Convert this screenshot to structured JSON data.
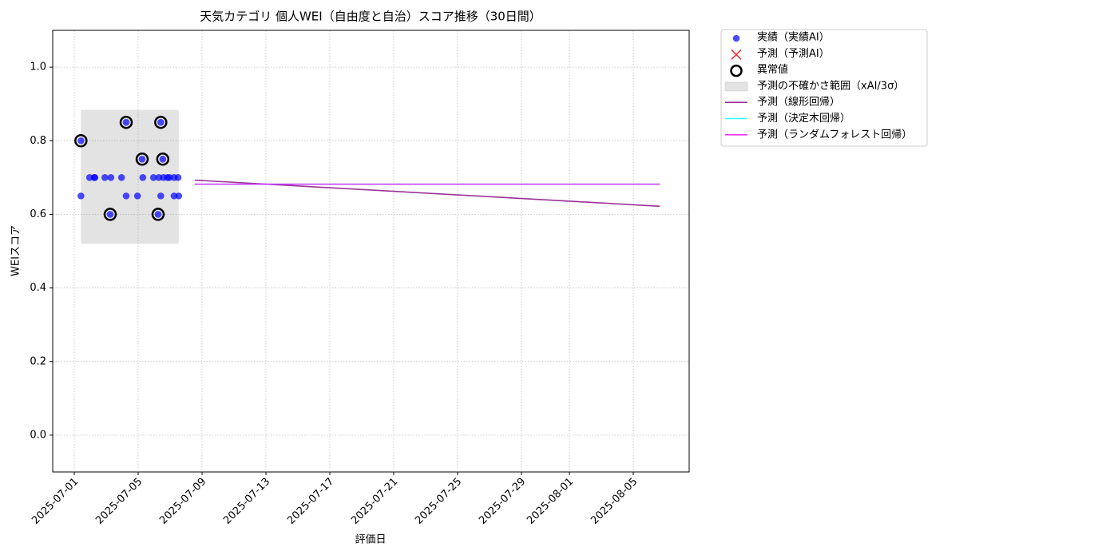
{
  "chart_data": {
    "type": "scatter",
    "title": "天気カテゴリ 個人WEI（自由度と自治）スコア推移（30日間）",
    "xlabel": "評価日",
    "ylabel": "WEIスコア",
    "xlim": [
      "2025-06-29T15:36",
      "2025-08-08T12:00"
    ],
    "xticks": [
      "2025-07-01",
      "2025-07-05",
      "2025-07-09",
      "2025-07-13",
      "2025-07-17",
      "2025-07-21",
      "2025-07-25",
      "2025-07-29",
      "2025-08-01",
      "2025-08-05"
    ],
    "ylim": [
      -0.1,
      1.1
    ],
    "yticks": [
      {
        "value": 0,
        "label": "0.0"
      },
      0.2,
      0.4,
      0.6,
      0.8,
      {
        "value": 1,
        "label": "1.0"
      }
    ],
    "grid": true,
    "legend": "outside upper right",
    "series": [
      {
        "name": "実績（実績AI）",
        "type": "scatter",
        "color": "#0000ff",
        "x": [
          "2025-07-01T10:00",
          "2025-07-01T10:00",
          "2025-07-01T23:00",
          "2025-07-02T06:00",
          "2025-07-02T07:00",
          "2025-07-02T22:00",
          "2025-07-03T07:00",
          "2025-07-03T06:00",
          "2025-07-03T23:00",
          "2025-07-04T06:00",
          "2025-07-04T06:00",
          "2025-07-04T23:00",
          "2025-07-05T06:00",
          "2025-07-05T07:00",
          "2025-07-05T23:00",
          "2025-07-06T07:00",
          "2025-07-06T06:00",
          "2025-07-06T10:00",
          "2025-07-06T10:00",
          "2025-07-06T13:00",
          "2025-07-06T14:00",
          "2025-07-06T20:00",
          "2025-07-06T23:00",
          "2025-07-07T06:00",
          "2025-07-07T06:00",
          "2025-07-07T12:00",
          "2025-07-07T13:00"
        ],
        "values": [
          0.8,
          0.65,
          0.7,
          0.7,
          0.7,
          0.7,
          0.7,
          0.6,
          0.7,
          0.85,
          0.65,
          0.65,
          0.75,
          0.7,
          0.7,
          0.7,
          0.6,
          0.85,
          0.65,
          0.75,
          0.7,
          0.7,
          0.7,
          0.7,
          0.65,
          0.7,
          0.65
        ]
      },
      {
        "name": "予測（予測AI）",
        "type": "cross",
        "color": "#ff0000",
        "x": [],
        "values": []
      },
      {
        "name": "異常値",
        "type": "ring",
        "color": "#000000",
        "x": [
          "2025-07-01T10:00",
          "2025-07-03T06:00",
          "2025-07-04T06:00",
          "2025-07-05T06:00",
          "2025-07-06T06:00",
          "2025-07-06T10:00",
          "2025-07-06T13:00"
        ],
        "values": [
          0.8,
          0.6,
          0.85,
          0.75,
          0.6,
          0.85,
          0.75
        ]
      },
      {
        "name": "予測の不確かさ範囲（xAI/3σ）",
        "type": "band",
        "color": "#808080",
        "x": [
          "2025-07-01T10:00",
          "2025-07-07T13:00"
        ],
        "lower": 0.52,
        "upper": 0.884
      },
      {
        "name": "予測（線形回帰）",
        "type": "line",
        "color": "#800080",
        "x": [
          "2025-07-08T13:00",
          "2025-08-06T16:00"
        ],
        "values": [
          0.693,
          0.622
        ]
      },
      {
        "name": "予測（決定木回帰）",
        "type": "line",
        "color": "#00ffff",
        "x": [
          "2025-07-08T13:00",
          "2025-08-06T16:00"
        ],
        "values": [
          0.682,
          0.682
        ]
      },
      {
        "name": "予測（ランダムフォレスト回帰）",
        "type": "line",
        "color": "#ff00ff",
        "x": [
          "2025-07-08T13:00",
          "2025-08-06T16:00"
        ],
        "values": [
          0.682,
          0.682
        ]
      }
    ]
  }
}
